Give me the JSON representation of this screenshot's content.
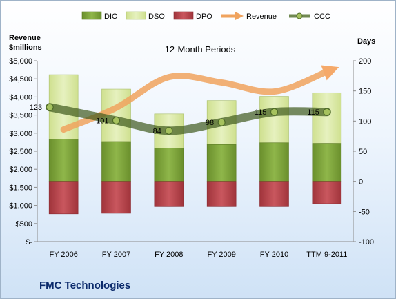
{
  "company": "FMC Technologies",
  "chart_data": {
    "type": "bar",
    "subtitle": "12-Month Periods",
    "left_axis_label": [
      "Revenue",
      "$millions"
    ],
    "right_axis_label": "Days",
    "categories": [
      "FY 2006",
      "FY 2007",
      "FY 2008",
      "FY 2009",
      "FY 2010",
      "TTM 9-2011"
    ],
    "left_axis": {
      "ylim": [
        0,
        5000
      ],
      "ticks": [
        "$-",
        "$500",
        "$1,000",
        "$1,500",
        "$2,000",
        "$2,500",
        "$3,000",
        "$3,500",
        "$4,000",
        "$4,500",
        "$5,000"
      ]
    },
    "right_axis": {
      "ylim": [
        -100,
        200
      ],
      "ticks": [
        "-100",
        "-50",
        "0",
        "50",
        "100",
        "150",
        "200"
      ]
    },
    "legend": {
      "placement": "top",
      "entries": [
        "DIO",
        "DSO",
        "DPO",
        "Revenue",
        "CCC"
      ]
    },
    "series": [
      {
        "name": "DIO",
        "type": "bar-stacked",
        "axis": "right",
        "color": "#7ea13b",
        "values": [
          70,
          66,
          55,
          61,
          64,
          63
        ]
      },
      {
        "name": "DSO",
        "type": "bar-stacked",
        "axis": "right",
        "color": "#dbe9a9",
        "values": [
          107,
          87,
          57,
          73,
          77,
          84
        ]
      },
      {
        "name": "DPO",
        "type": "bar-negative",
        "axis": "right",
        "color": "#b8434a",
        "values": [
          -54,
          -53,
          -42,
          -42,
          -42,
          -37
        ]
      },
      {
        "name": "Revenue",
        "type": "line",
        "axis": "left",
        "color": "#f0a35e",
        "values": [
          3100,
          3700,
          4550,
          4400,
          4150,
          4700
        ]
      },
      {
        "name": "CCC",
        "type": "line",
        "axis": "right",
        "color": "#4e6b27",
        "values": [
          123,
          101,
          84,
          98,
          115,
          115
        ]
      }
    ],
    "data_labels": [
      "123",
      "101",
      "84",
      "98",
      "115",
      "115"
    ],
    "grid": false
  }
}
